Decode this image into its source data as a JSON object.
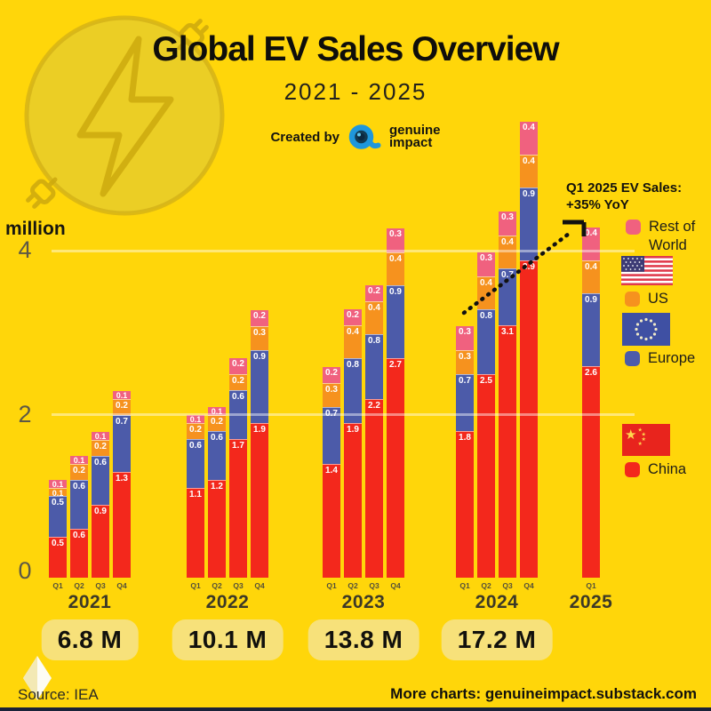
{
  "header": {
    "title": "Global EV Sales Overview",
    "subtitle": "2021 - 2025",
    "created_by": "Created by",
    "brand_line1": "genuine",
    "brand_line2": "impact"
  },
  "axis": {
    "unit_label": "million",
    "ticks": [
      "4",
      "2",
      "0"
    ]
  },
  "annotation": {
    "line1": "Q1 2025 EV Sales:",
    "line2": "+35% YoY"
  },
  "legend": [
    {
      "label": "Rest of World",
      "color": "#F0617F"
    },
    {
      "label": "US",
      "color": "#F6921E"
    },
    {
      "label": "Europe",
      "color": "#4C5BA9"
    },
    {
      "label": "China",
      "color": "#F3281C"
    }
  ],
  "footer": {
    "source": "Source:  IEA",
    "more": "More charts: genuineimpact.substack.com"
  },
  "chart_data": {
    "type": "bar",
    "stacked": true,
    "title": "Global EV Sales Overview 2021 - 2025",
    "ylabel": "million",
    "ylim": [
      0,
      4.5
    ],
    "gridlines": [
      2,
      4
    ],
    "legend_position": "right",
    "series_order": [
      "China",
      "Europe",
      "US",
      "Rest of World"
    ],
    "colors": {
      "China": "#F3281C",
      "Europe": "#4C5BA9",
      "US": "#F6921E",
      "Rest of World": "#F0617F"
    },
    "groups": [
      {
        "year": "2021",
        "total_label": "6.8 M",
        "quarters": [
          {
            "label": "Q1",
            "values": [
              0.5,
              0.5,
              0.1,
              0.1
            ]
          },
          {
            "label": "Q2",
            "values": [
              0.6,
              0.6,
              0.2,
              0.1
            ]
          },
          {
            "label": "Q3",
            "values": [
              0.9,
              0.6,
              0.2,
              0.1
            ]
          },
          {
            "label": "Q4",
            "values": [
              1.3,
              0.7,
              0.2,
              0.1
            ]
          }
        ]
      },
      {
        "year": "2022",
        "total_label": "10.1 M",
        "quarters": [
          {
            "label": "Q1",
            "values": [
              1.1,
              0.6,
              0.2,
              0.1
            ]
          },
          {
            "label": "Q2",
            "values": [
              1.2,
              0.6,
              0.2,
              0.1
            ]
          },
          {
            "label": "Q3",
            "values": [
              1.7,
              0.6,
              0.2,
              0.2
            ]
          },
          {
            "label": "Q4",
            "values": [
              1.9,
              0.9,
              0.3,
              0.2
            ]
          }
        ]
      },
      {
        "year": "2023",
        "total_label": "13.8 M",
        "quarters": [
          {
            "label": "Q1",
            "values": [
              1.4,
              0.7,
              0.3,
              0.2
            ]
          },
          {
            "label": "Q2",
            "values": [
              1.9,
              0.8,
              0.4,
              0.2
            ]
          },
          {
            "label": "Q3",
            "values": [
              2.2,
              0.8,
              0.4,
              0.2
            ]
          },
          {
            "label": "Q4",
            "values": [
              2.7,
              0.9,
              0.4,
              0.3
            ]
          }
        ]
      },
      {
        "year": "2024",
        "total_label": "17.2 M",
        "quarters": [
          {
            "label": "Q1",
            "values": [
              1.8,
              0.7,
              0.3,
              0.3
            ]
          },
          {
            "label": "Q2",
            "values": [
              2.5,
              0.8,
              0.4,
              0.3
            ]
          },
          {
            "label": "Q3",
            "values": [
              3.1,
              0.7,
              0.4,
              0.3
            ]
          },
          {
            "label": "Q4",
            "values": [
              3.9,
              0.9,
              0.4,
              0.4
            ]
          }
        ]
      },
      {
        "year": "2025",
        "total_label": null,
        "quarters": [
          {
            "label": "Q1",
            "values": [
              2.6,
              0.9,
              0.4,
              0.4
            ]
          }
        ]
      }
    ],
    "annotation": {
      "text": "Q1 2025 EV Sales: +35% YoY"
    }
  }
}
